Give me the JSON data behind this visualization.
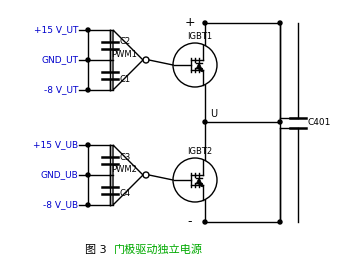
{
  "bg_color": "#ffffff",
  "line_color": "#000000",
  "label_color": "#0000cc",
  "green_color": "#00aa00",
  "labels_top": [
    "+15 V_UT",
    "GND_UT",
    "-8 V_UT"
  ],
  "labels_bot": [
    "+15 V_UB",
    "GND_UB",
    "-8 V_UB"
  ],
  "caps_top": [
    "C2",
    "C1"
  ],
  "caps_bot": [
    "C3",
    "C4"
  ],
  "pwm_top": "PWM1",
  "pwm_bot": "PWM2",
  "igbt_top": "IGBT1",
  "igbt_bot": "IGBT2",
  "cap_right": "C401",
  "plus_label": "+",
  "minus_label": "-",
  "u_label": "U",
  "caption_black": "图 3    ",
  "caption_green": "门极驱动独立电源"
}
